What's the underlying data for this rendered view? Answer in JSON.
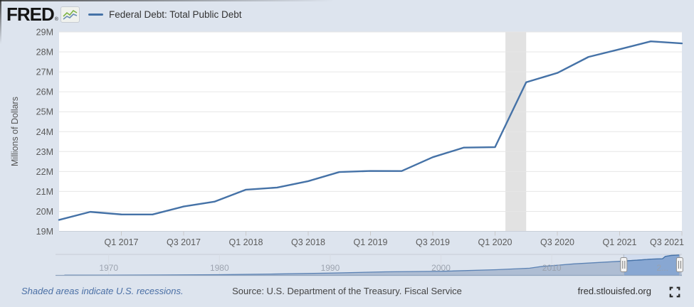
{
  "header": {
    "logo_text": "FRED",
    "logo_reg": "®",
    "legend_label": "Federal Debt: Total Public Debt"
  },
  "colors": {
    "page_bg": "#dde4ee",
    "series_line": "#4572a7",
    "recession_band": "#e2e2e2",
    "gridline": "#e6e6e6",
    "axis_line": "#c9cfd9",
    "axis_label": "#5b5b5b",
    "nav_fill": "#aebdd3",
    "nav_fill_selected": "#88a7d2",
    "nav_selected_bg": "#d2ddef",
    "nav_label": "#9aa1ad"
  },
  "chart_data": {
    "type": "line",
    "title": "Federal Debt: Total Public Debt",
    "ylabel": "Millions of Dollars",
    "ylim_millions": [
      19000000,
      29000000
    ],
    "grid": true,
    "y_ticks": [
      {
        "label": "29M",
        "value": 29
      },
      {
        "label": "28M",
        "value": 28
      },
      {
        "label": "27M",
        "value": 27
      },
      {
        "label": "26M",
        "value": 26
      },
      {
        "label": "25M",
        "value": 25
      },
      {
        "label": "24M",
        "value": 24
      },
      {
        "label": "23M",
        "value": 23
      },
      {
        "label": "22M",
        "value": 22
      },
      {
        "label": "21M",
        "value": 21
      },
      {
        "label": "20M",
        "value": 20
      },
      {
        "label": "19M",
        "value": 19
      }
    ],
    "x_ticks": [
      {
        "label": "Q1 2017",
        "index": 2
      },
      {
        "label": "Q3 2017",
        "index": 4
      },
      {
        "label": "Q1 2018",
        "index": 6
      },
      {
        "label": "Q3 2018",
        "index": 8
      },
      {
        "label": "Q1 2019",
        "index": 10
      },
      {
        "label": "Q3 2019",
        "index": 12
      },
      {
        "label": "Q1 2020",
        "index": 14
      },
      {
        "label": "Q3 2020",
        "index": 16
      },
      {
        "label": "Q1 2021",
        "index": 18
      },
      {
        "label": "Q3 2021",
        "index": 20
      }
    ],
    "series": [
      {
        "name": "Federal Debt: Total Public Debt",
        "quarters": [
          "Q3 2016",
          "Q4 2016",
          "Q1 2017",
          "Q2 2017",
          "Q3 2017",
          "Q4 2017",
          "Q1 2018",
          "Q2 2018",
          "Q3 2018",
          "Q4 2018",
          "Q1 2019",
          "Q2 2019",
          "Q3 2019",
          "Q4 2019",
          "Q1 2020",
          "Q2 2020",
          "Q3 2020",
          "Q4 2020",
          "Q1 2021",
          "Q2 2021",
          "Q3 2021"
        ],
        "values_millions": [
          19573445,
          19976827,
          19846420,
          19844554,
          20244900,
          20492747,
          21089643,
          21195070,
          21516058,
          21974096,
          22027880,
          22023283,
          22719402,
          23201380,
          23223813,
          26477188,
          26945391,
          27747798,
          28132570,
          28529436,
          28428919
        ]
      }
    ],
    "recession_band": {
      "from_quarter_index": 14.333,
      "to_quarter_index": 15.0
    },
    "navigator": {
      "axis_start_year": 1965.2,
      "axis_end_year": 2021.75,
      "value_max_millions": 28600000,
      "selected_range_years": [
        2016.5,
        2021.55
      ],
      "x_labels": [
        {
          "label": "1970",
          "year": 1970
        },
        {
          "label": "1980",
          "year": 1980
        },
        {
          "label": "1990",
          "year": 1990
        },
        {
          "label": "2000",
          "year": 2000
        },
        {
          "label": "2010",
          "year": 2010
        },
        {
          "label": "2...",
          "year": 2020
        }
      ],
      "series_year_value_millions": [
        [
          1966,
          320000
        ],
        [
          1970,
          382000
        ],
        [
          1975,
          544000
        ],
        [
          1980,
          930000
        ],
        [
          1985,
          1946000
        ],
        [
          1990,
          3233000
        ],
        [
          1995,
          4974000
        ],
        [
          2000,
          5674000
        ],
        [
          2005,
          7933000
        ],
        [
          2008,
          10025000
        ],
        [
          2009,
          12311000
        ],
        [
          2010,
          13562000
        ],
        [
          2012,
          16066000
        ],
        [
          2014,
          17824000
        ],
        [
          2016,
          19573000
        ],
        [
          2018,
          21516000
        ],
        [
          2019,
          22719000
        ],
        [
          2020.0,
          23224000
        ],
        [
          2020.25,
          26477000
        ],
        [
          2020.75,
          27748000
        ],
        [
          2021.5,
          28429000
        ]
      ]
    }
  },
  "footer": {
    "note": "Shaded areas indicate U.S. recessions.",
    "source": "Source: U.S. Department of the Treasury. Fiscal Service",
    "site": "fred.stlouisfed.org"
  }
}
